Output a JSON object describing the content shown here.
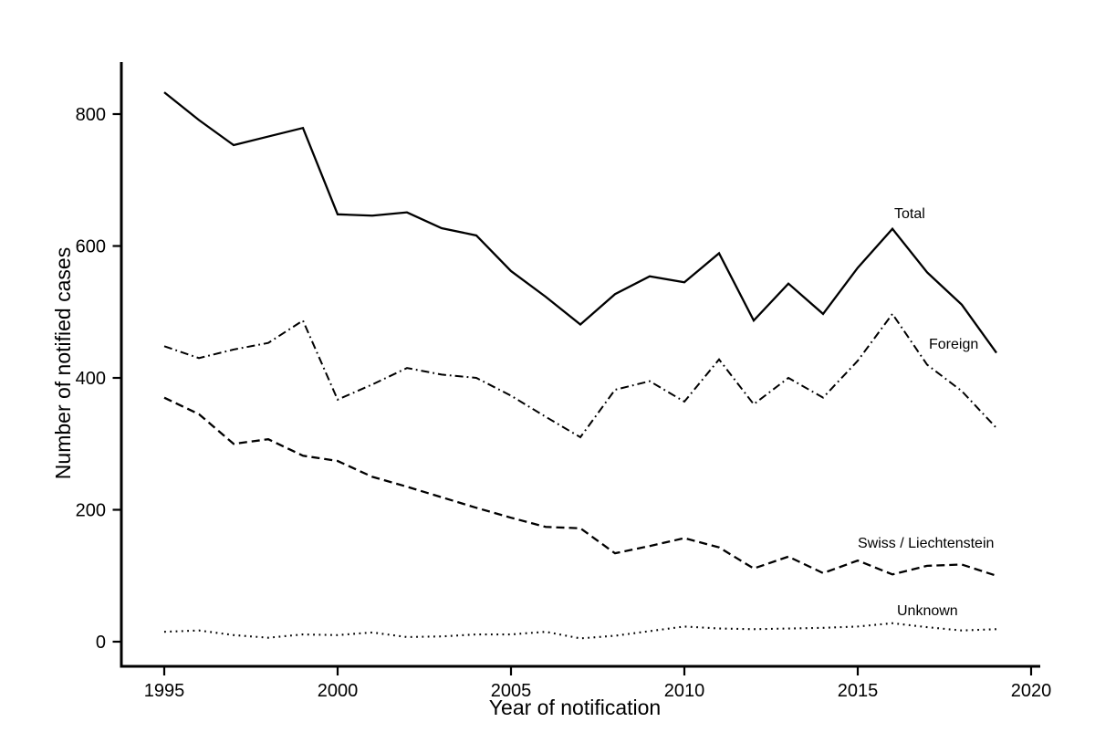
{
  "chart_data": {
    "type": "line",
    "title": "",
    "xlabel": "Year of notification",
    "ylabel": "Number of notified cases",
    "color": "#000000",
    "background": "#ffffff",
    "grid": false,
    "legend": "inline-labels-right",
    "x": [
      1995,
      1996,
      1997,
      1998,
      1999,
      2000,
      2001,
      2002,
      2003,
      2004,
      2005,
      2006,
      2007,
      2008,
      2009,
      2010,
      2011,
      2012,
      2013,
      2014,
      2015,
      2016,
      2017,
      2018,
      2019
    ],
    "series": [
      {
        "name": "Total",
        "line_style": "solid",
        "values": [
          833,
          791,
          753,
          766,
          779,
          648,
          646,
          651,
          627,
          616,
          562,
          523,
          481,
          527,
          554,
          545,
          589,
          487,
          543,
          497,
          567,
          626,
          560,
          511,
          438
        ]
      },
      {
        "name": "Foreign",
        "line_style": "dash-dot",
        "values": [
          448,
          430,
          443,
          453,
          487,
          367,
          390,
          415,
          405,
          400,
          373,
          341,
          310,
          382,
          395,
          364,
          428,
          360,
          400,
          370,
          426,
          497,
          420,
          380,
          324
        ]
      },
      {
        "name": "Swiss / Liechtenstein",
        "line_style": "dashed",
        "values": [
          370,
          345,
          300,
          307,
          282,
          274,
          250,
          235,
          219,
          203,
          188,
          174,
          172,
          134,
          145,
          157,
          143,
          111,
          129,
          104,
          123,
          102,
          115,
          117,
          100
        ]
      },
      {
        "name": "Unknown",
        "line_style": "dotted",
        "values": [
          15,
          17,
          10,
          6,
          11,
          10,
          14,
          7,
          8,
          11,
          11,
          15,
          5,
          9,
          16,
          23,
          20,
          19,
          20,
          21,
          23,
          28,
          22,
          17,
          19
        ]
      }
    ],
    "xaxis": {
      "ticks": [
        1995,
        2000,
        2005,
        2010,
        2015,
        2020
      ],
      "range": [
        1993.7,
        2020.3
      ]
    },
    "yaxis": {
      "ticks": [
        0,
        200,
        400,
        600,
        800
      ],
      "range": [
        -37,
        879
      ]
    }
  }
}
